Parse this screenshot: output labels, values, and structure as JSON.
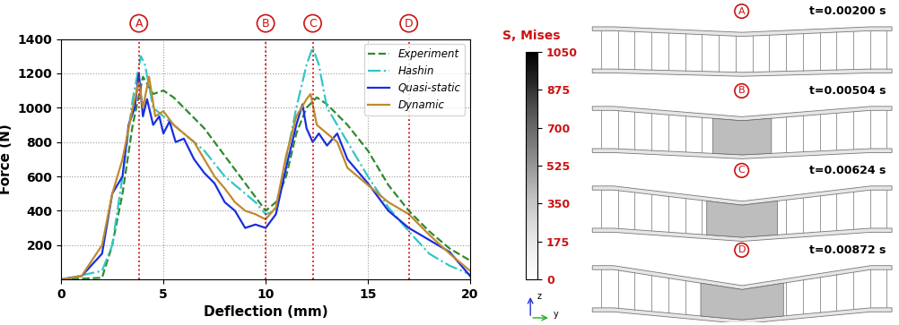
{
  "chart_data": {
    "type": "line",
    "x_label": "Deflection (mm)",
    "y_label": "Force (N)",
    "xlim": [
      0,
      20
    ],
    "xticks": [
      0,
      5,
      10,
      15,
      20
    ],
    "ylim": [
      0,
      1400
    ],
    "yticks": [
      200,
      400,
      600,
      800,
      1000,
      1200,
      1400
    ],
    "grid": true,
    "legend": "upper right",
    "annotations": [
      {
        "text": "A",
        "x": 3.8
      },
      {
        "text": "B",
        "x": 10
      },
      {
        "text": "C",
        "x": 12.3
      },
      {
        "text": "D",
        "x": 17
      }
    ],
    "series": [
      {
        "name": "Experiment",
        "color": "#2e8b2e",
        "line_style": "dashed",
        "x": [
          0,
          2,
          2.5,
          3,
          3.5,
          4,
          4.5,
          5,
          5.5,
          6,
          7,
          8,
          9,
          9.5,
          10,
          10.5,
          11,
          11.5,
          12,
          12.5,
          13,
          14,
          15,
          16,
          17,
          18,
          19,
          20
        ],
        "values": [
          0,
          10,
          200,
          500,
          900,
          1180,
          1080,
          1100,
          1060,
          1000,
          880,
          720,
          560,
          480,
          400,
          450,
          600,
          850,
          1000,
          1060,
          1020,
          900,
          750,
          550,
          400,
          280,
          180,
          110
        ]
      },
      {
        "name": "Hashin",
        "color": "#33c6c6",
        "line_style": "dashdot",
        "x": [
          0,
          2,
          2.5,
          3,
          3.5,
          3.9,
          4.1,
          4.5,
          5,
          5.5,
          6,
          7,
          8,
          9,
          9.5,
          10,
          10.5,
          11,
          11.5,
          12,
          12.3,
          12.6,
          13,
          14,
          15,
          16,
          17,
          18,
          19,
          20
        ],
        "values": [
          0,
          50,
          200,
          600,
          1050,
          1300,
          1250,
          1000,
          950,
          900,
          850,
          750,
          600,
          500,
          450,
          380,
          400,
          700,
          1000,
          1250,
          1350,
          1250,
          1000,
          800,
          600,
          420,
          280,
          150,
          80,
          30
        ]
      },
      {
        "name": "Quasi-static",
        "color": "#1a2ee0",
        "line_style": "solid",
        "x": [
          0,
          1,
          2,
          2.5,
          3,
          3.3,
          3.6,
          3.8,
          4,
          4.2,
          4.5,
          4.8,
          5,
          5.3,
          5.6,
          6,
          6.5,
          7,
          7.5,
          8,
          8.5,
          9,
          9.5,
          10,
          10.5,
          11,
          11.5,
          11.8,
          12,
          12.3,
          12.6,
          13,
          13.5,
          14,
          15,
          15.5,
          16,
          17,
          18,
          19,
          20
        ],
        "values": [
          0,
          20,
          150,
          500,
          600,
          900,
          1000,
          1200,
          950,
          1050,
          900,
          950,
          850,
          920,
          800,
          820,
          700,
          620,
          560,
          450,
          400,
          300,
          320,
          300,
          380,
          650,
          900,
          1020,
          880,
          800,
          850,
          780,
          850,
          700,
          560,
          480,
          400,
          300,
          230,
          160,
          20
        ]
      },
      {
        "name": "Dynamic",
        "color": "#c08a2e",
        "line_style": "solid",
        "x": [
          0,
          1,
          2,
          2.5,
          3,
          3.5,
          3.8,
          4,
          4.3,
          4.6,
          5,
          5.5,
          6,
          6.5,
          7,
          7.5,
          8,
          8.5,
          9,
          9.5,
          10,
          10.5,
          11,
          11.5,
          12,
          12.2,
          12.5,
          13,
          13.5,
          14,
          15,
          16,
          17,
          18,
          19,
          20
        ],
        "values": [
          0,
          20,
          200,
          500,
          700,
          1000,
          1150,
          1000,
          1180,
          950,
          980,
          900,
          850,
          800,
          700,
          600,
          530,
          450,
          400,
          380,
          350,
          420,
          720,
          950,
          1050,
          1080,
          900,
          850,
          800,
          650,
          550,
          450,
          380,
          260,
          150,
          50
        ]
      }
    ]
  },
  "fe_panels": {
    "colorbar": {
      "title": "S, Mises",
      "ylim": [
        0,
        1050
      ],
      "yticks": [
        0,
        175,
        350,
        525,
        700,
        875,
        1050
      ]
    },
    "axes": [
      "z",
      "y"
    ],
    "panels": [
      {
        "label": "A",
        "time": "t=0.00200 s"
      },
      {
        "label": "B",
        "time": "t=0.00504 s"
      },
      {
        "label": "C",
        "time": "t=0.00624 s"
      },
      {
        "label": "D",
        "time": "t=0.00872 s"
      }
    ]
  }
}
